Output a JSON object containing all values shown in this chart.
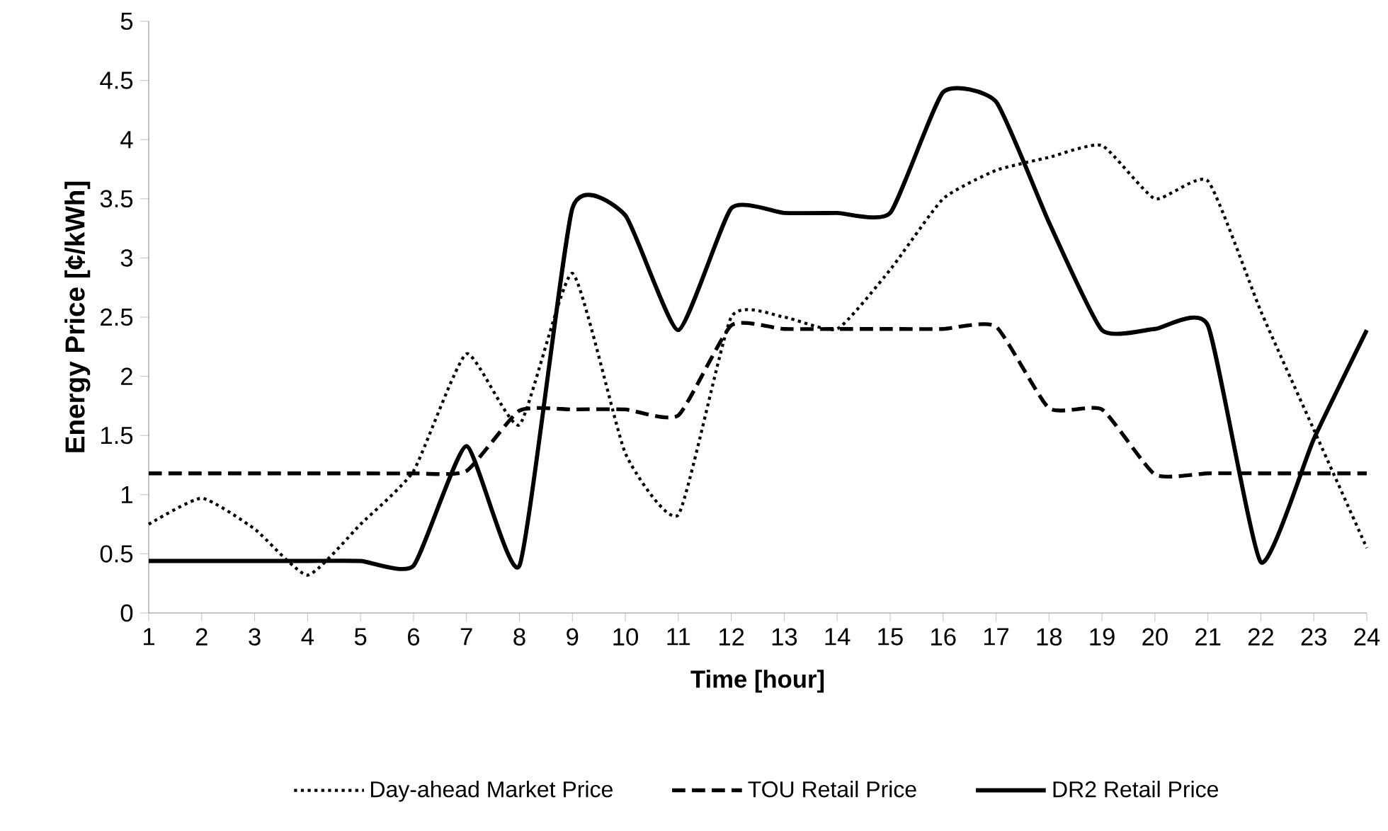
{
  "chart_data": {
    "type": "line",
    "xlabel": "Time [hour]",
    "ylabel": "Energy Price [¢/kWh]",
    "categories": [
      "1",
      "2",
      "3",
      "4",
      "5",
      "6",
      "7",
      "8",
      "9",
      "10",
      "11",
      "12",
      "13",
      "14",
      "15",
      "16",
      "17",
      "18",
      "19",
      "20",
      "21",
      "22",
      "23",
      "24"
    ],
    "ylim": [
      0,
      5
    ],
    "yticks": [
      0,
      0.5,
      1,
      1.5,
      2,
      2.5,
      3,
      3.5,
      4,
      4.5,
      5
    ],
    "grid": false,
    "legend": "bottom",
    "series": [
      {
        "name": "Day-ahead Market Price",
        "color": "#000000",
        "line_style": "dotted",
        "values": [
          0.75,
          0.97,
          0.71,
          0.32,
          0.75,
          1.2,
          2.19,
          1.59,
          2.87,
          1.35,
          0.83,
          2.5,
          2.5,
          2.4,
          2.9,
          3.5,
          3.74,
          3.85,
          3.95,
          3.5,
          3.65,
          2.55,
          1.55,
          0.55
        ]
      },
      {
        "name": "TOU Retail Price",
        "color": "#000000",
        "line_style": "dashed",
        "values": [
          1.18,
          1.18,
          1.18,
          1.18,
          1.18,
          1.18,
          1.2,
          1.71,
          1.72,
          1.72,
          1.67,
          2.43,
          2.4,
          2.4,
          2.4,
          2.4,
          2.42,
          1.73,
          1.72,
          1.17,
          1.18,
          1.18,
          1.18,
          1.18
        ]
      },
      {
        "name": "DR2 Retail Price",
        "color": "#000000",
        "line_style": "solid",
        "values": [
          0.44,
          0.44,
          0.44,
          0.44,
          0.44,
          0.4,
          1.41,
          0.4,
          3.42,
          3.36,
          2.39,
          3.42,
          3.38,
          3.38,
          3.38,
          4.4,
          4.32,
          3.3,
          2.39,
          2.4,
          2.43,
          0.43,
          1.47,
          2.39
        ]
      }
    ]
  }
}
